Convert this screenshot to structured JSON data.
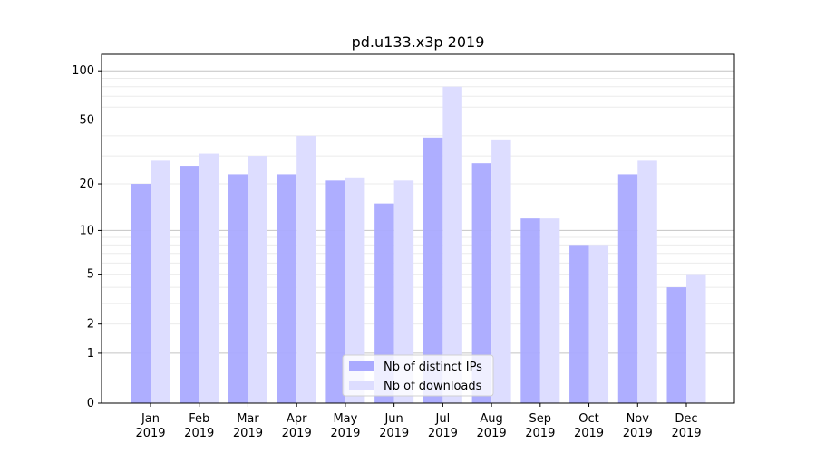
{
  "chart_data": {
    "type": "bar",
    "title": "pd.u133.x3p 2019",
    "xlabel": "",
    "ylabel": "",
    "yscale": "log(1+x)",
    "ylim": [
      0,
      126
    ],
    "yticks": [
      0,
      1,
      2,
      5,
      10,
      20,
      50,
      100
    ],
    "categories": [
      "Jan\n2019",
      "Feb\n2019",
      "Mar\n2019",
      "Apr\n2019",
      "May\n2019",
      "Jun\n2019",
      "Jul\n2019",
      "Aug\n2019",
      "Sep\n2019",
      "Oct\n2019",
      "Nov\n2019",
      "Dec\n2019"
    ],
    "series": [
      {
        "name": "Nb of distinct IPs",
        "color": "#aaaaff",
        "values": [
          20,
          26,
          23,
          23,
          21,
          15,
          39,
          27,
          12,
          8,
          23,
          4
        ]
      },
      {
        "name": "Nb of downloads",
        "color": "#ddddff",
        "values": [
          28,
          31,
          30,
          40,
          22,
          21,
          80,
          38,
          12,
          8,
          28,
          5
        ]
      }
    ],
    "grid": true,
    "legend_position": "bottom-center"
  }
}
